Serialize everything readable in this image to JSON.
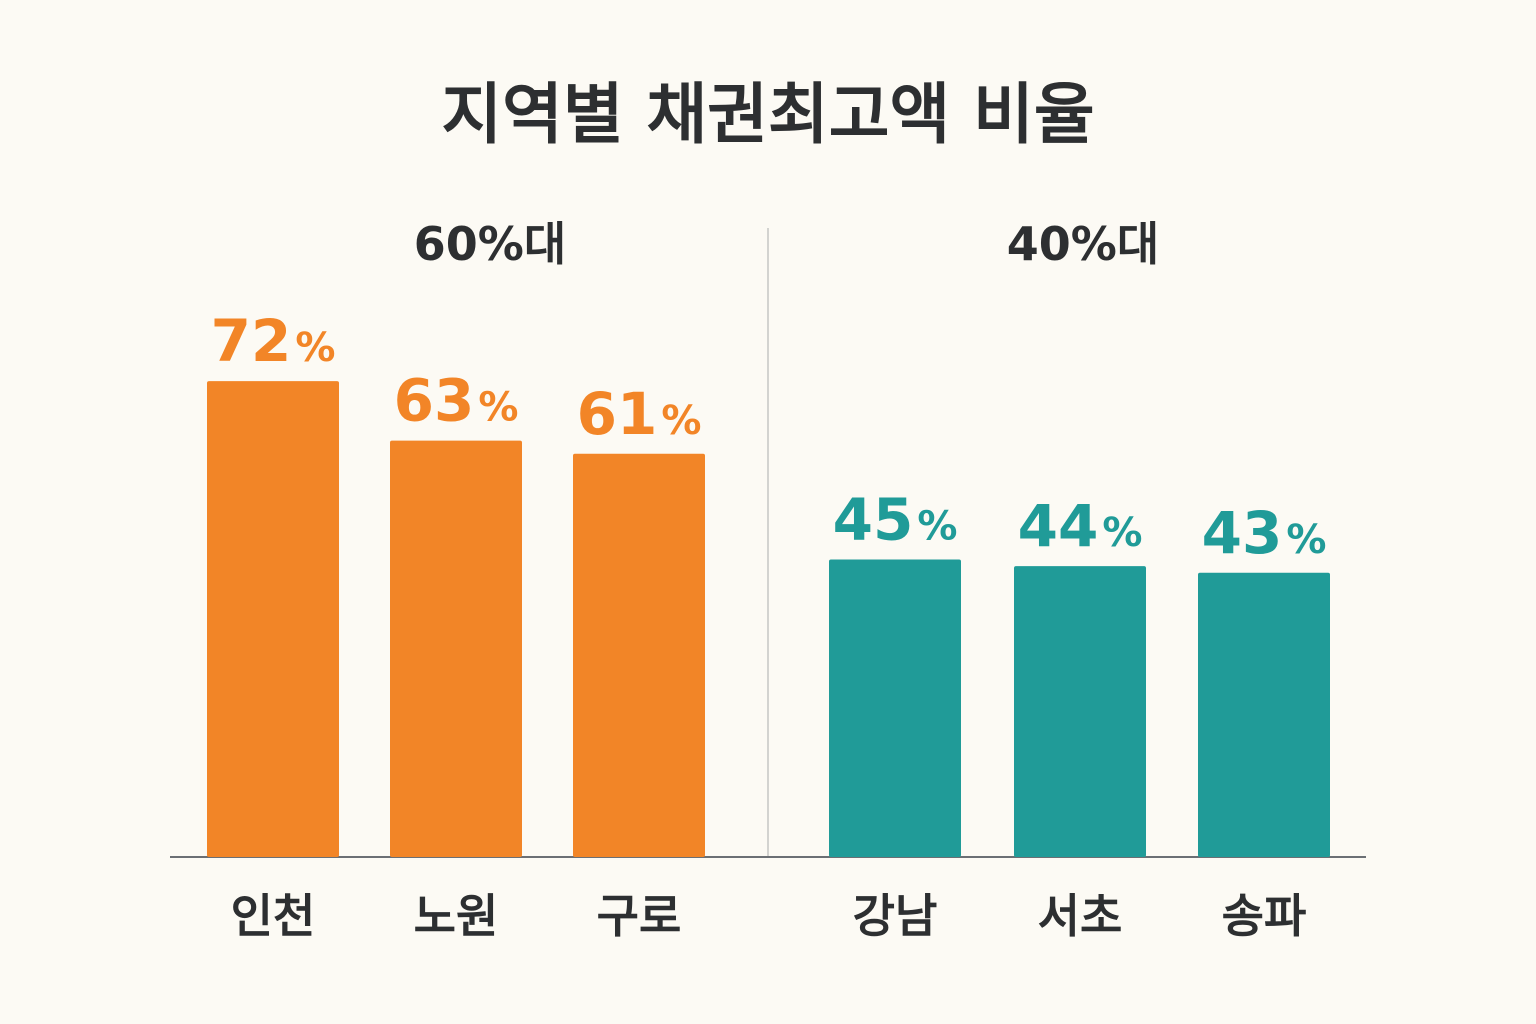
{
  "colors": {
    "background": "#fcfaf4",
    "title": "#2d2f31",
    "group_60": "#f28527",
    "group_40": "#209b98",
    "axis": "#6b6f74",
    "divider": "#d3d3d0"
  },
  "chart_data": {
    "type": "bar",
    "title": "지역별 채권최고액 비율",
    "xlabel": "",
    "ylabel": "",
    "ylim": [
      0,
      80
    ],
    "grid": false,
    "legend": "none",
    "value_suffix": "%",
    "groups": [
      {
        "label": "60%대",
        "color": "#f28527",
        "categories": [
          "인천",
          "노원",
          "구로"
        ],
        "values": [
          72,
          63,
          61
        ]
      },
      {
        "label": "40%대",
        "color": "#209b98",
        "categories": [
          "강남",
          "서초",
          "송파"
        ],
        "values": [
          45,
          44,
          43
        ]
      }
    ]
  }
}
